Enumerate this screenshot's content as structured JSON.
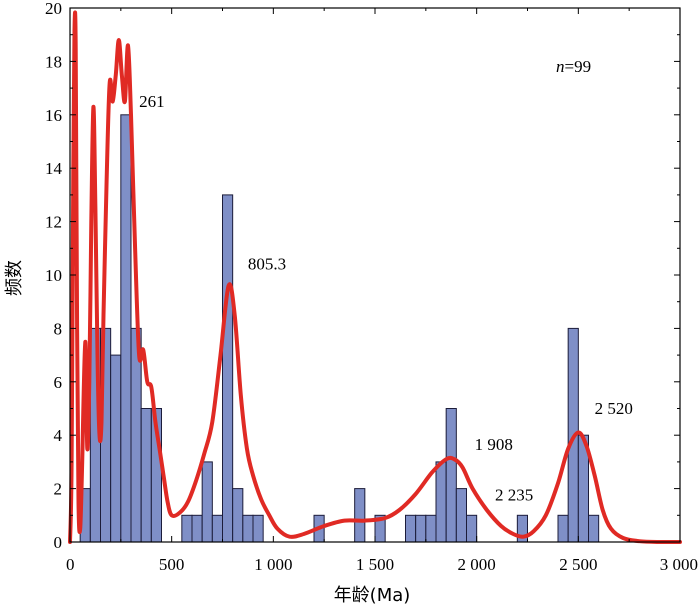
{
  "chart_data": {
    "type": "bar",
    "xlabel": "年龄(Ma)",
    "ylabel": "频数",
    "xlim": [
      0,
      3000
    ],
    "ylim": [
      0,
      20
    ],
    "x_ticks": [
      0,
      500,
      1000,
      1500,
      2000,
      2500,
      3000
    ],
    "x_tick_labels": [
      "0",
      "500",
      "1 000",
      "1 500",
      "2 000",
      "2 500",
      "3 000"
    ],
    "y_ticks": [
      0,
      2,
      4,
      6,
      8,
      10,
      12,
      14,
      16,
      18,
      20
    ],
    "y_tick_labels": [
      "0",
      "2",
      "4",
      "6",
      "8",
      "10",
      "12",
      "14",
      "16",
      "18",
      "20"
    ],
    "sample_label": {
      "italic": "n",
      "rest": "=99"
    },
    "grid": false,
    "series": [
      {
        "type": "histogram",
        "bin_width": 50,
        "bins": [
          {
            "start": 50,
            "count": 2
          },
          {
            "start": 100,
            "count": 8
          },
          {
            "start": 150,
            "count": 8
          },
          {
            "start": 200,
            "count": 7
          },
          {
            "start": 250,
            "count": 16
          },
          {
            "start": 300,
            "count": 8
          },
          {
            "start": 350,
            "count": 5
          },
          {
            "start": 400,
            "count": 5
          },
          {
            "start": 550,
            "count": 1
          },
          {
            "start": 600,
            "count": 1
          },
          {
            "start": 650,
            "count": 3
          },
          {
            "start": 700,
            "count": 1
          },
          {
            "start": 750,
            "count": 13
          },
          {
            "start": 800,
            "count": 2
          },
          {
            "start": 850,
            "count": 1
          },
          {
            "start": 900,
            "count": 1
          },
          {
            "start": 1200,
            "count": 1
          },
          {
            "start": 1400,
            "count": 2
          },
          {
            "start": 1500,
            "count": 1
          },
          {
            "start": 1650,
            "count": 1
          },
          {
            "start": 1700,
            "count": 1
          },
          {
            "start": 1750,
            "count": 1
          },
          {
            "start": 1800,
            "count": 3
          },
          {
            "start": 1850,
            "count": 5
          },
          {
            "start": 1900,
            "count": 2
          },
          {
            "start": 1950,
            "count": 1
          },
          {
            "start": 2200,
            "count": 1
          },
          {
            "start": 2400,
            "count": 1
          },
          {
            "start": 2450,
            "count": 8
          },
          {
            "start": 2500,
            "count": 4
          },
          {
            "start": 2550,
            "count": 1
          }
        ],
        "color": "#7f8fc7"
      },
      {
        "type": "line",
        "color": "#e02a24",
        "points": [
          [
            0,
            0
          ],
          [
            8,
            3
          ],
          [
            16,
            14
          ],
          [
            22,
            19.2
          ],
          [
            28,
            18.5
          ],
          [
            35,
            8
          ],
          [
            42,
            1.5
          ],
          [
            50,
            0.5
          ],
          [
            60,
            3
          ],
          [
            75,
            7.5
          ],
          [
            85,
            3.5
          ],
          [
            95,
            6
          ],
          [
            105,
            12
          ],
          [
            115,
            16.3
          ],
          [
            125,
            12.5
          ],
          [
            135,
            7
          ],
          [
            145,
            4
          ],
          [
            155,
            4.5
          ],
          [
            165,
            8.5
          ],
          [
            180,
            13.5
          ],
          [
            195,
            17.2
          ],
          [
            210,
            16.5
          ],
          [
            225,
            17.5
          ],
          [
            240,
            18.8
          ],
          [
            255,
            17.5
          ],
          [
            270,
            16.5
          ],
          [
            285,
            18.6
          ],
          [
            300,
            16
          ],
          [
            320,
            11
          ],
          [
            340,
            7
          ],
          [
            360,
            7.2
          ],
          [
            380,
            6
          ],
          [
            400,
            5.8
          ],
          [
            420,
            4.5
          ],
          [
            440,
            3.5
          ],
          [
            460,
            2.5
          ],
          [
            480,
            1.5
          ],
          [
            500,
            1
          ],
          [
            540,
            1.1
          ],
          [
            580,
            1.5
          ],
          [
            620,
            2.3
          ],
          [
            660,
            3.3
          ],
          [
            700,
            4.5
          ],
          [
            740,
            7
          ],
          [
            780,
            9.6
          ],
          [
            810,
            8.5
          ],
          [
            840,
            5.5
          ],
          [
            870,
            3.5
          ],
          [
            900,
            2.5
          ],
          [
            940,
            1.6
          ],
          [
            980,
            1
          ],
          [
            1020,
            0.5
          ],
          [
            1080,
            0.2
          ],
          [
            1150,
            0.3
          ],
          [
            1250,
            0.6
          ],
          [
            1350,
            0.8
          ],
          [
            1450,
            0.8
          ],
          [
            1550,
            0.9
          ],
          [
            1620,
            1.2
          ],
          [
            1700,
            1.8
          ],
          [
            1780,
            2.6
          ],
          [
            1850,
            3.1
          ],
          [
            1890,
            3.1
          ],
          [
            1930,
            2.8
          ],
          [
            1980,
            2
          ],
          [
            2050,
            1.2
          ],
          [
            2120,
            0.6
          ],
          [
            2180,
            0.3
          ],
          [
            2230,
            0.2
          ],
          [
            2280,
            0.4
          ],
          [
            2340,
            1
          ],
          [
            2400,
            2.2
          ],
          [
            2450,
            3.5
          ],
          [
            2500,
            4.1
          ],
          [
            2540,
            3.6
          ],
          [
            2580,
            2.5
          ],
          [
            2620,
            1.2
          ],
          [
            2660,
            0.5
          ],
          [
            2720,
            0.15
          ],
          [
            2800,
            0.03
          ],
          [
            2900,
            0
          ],
          [
            3000,
            0
          ]
        ]
      }
    ],
    "annotations": [
      {
        "text": "261",
        "x": 340,
        "y": 16.3
      },
      {
        "text": "805.3",
        "x": 875,
        "y": 10.2
      },
      {
        "text": "1 908",
        "x": 1990,
        "y": 3.45
      },
      {
        "text": "2 235",
        "x": 2090,
        "y": 1.55
      },
      {
        "text": "2 520",
        "x": 2580,
        "y": 4.8
      }
    ]
  }
}
